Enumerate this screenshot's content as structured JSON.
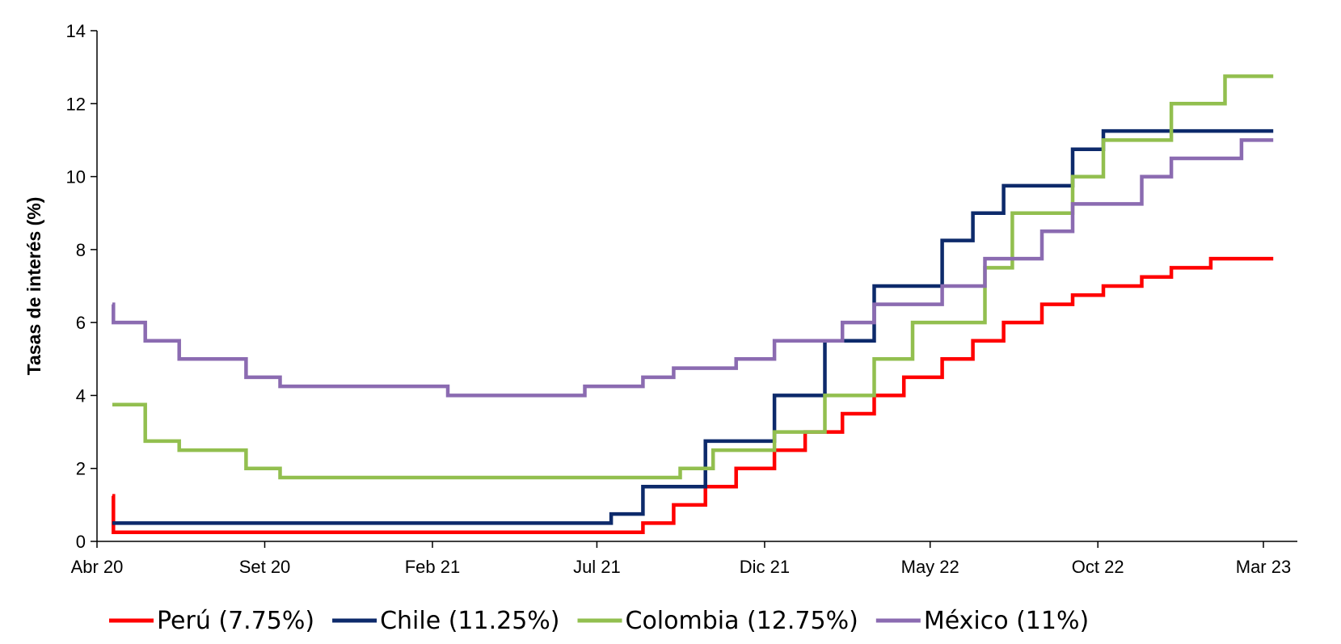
{
  "chart_data": {
    "type": "line",
    "step": true,
    "title": "",
    "xlabel": "",
    "ylabel": "Tasas de interés (%)",
    "ylim": [
      0,
      14
    ],
    "yticks": [
      0,
      2,
      4,
      6,
      8,
      10,
      12,
      14
    ],
    "xlim": [
      "2020-04-01",
      "2023-03-01"
    ],
    "xticks": [
      {
        "date": "2020-04-01",
        "label": "Abr 20"
      },
      {
        "date": "2020-09-01",
        "label": "Set 20"
      },
      {
        "date": "2021-02-01",
        "label": "Feb 21"
      },
      {
        "date": "2021-07-01",
        "label": "Jul 21"
      },
      {
        "date": "2021-12-01",
        "label": "Dic 21"
      },
      {
        "date": "2022-05-01",
        "label": "May 22"
      },
      {
        "date": "2022-10-01",
        "label": "Oct 22"
      },
      {
        "date": "2023-03-01",
        "label": "Mar 23"
      }
    ],
    "grid": false,
    "legend_position": "bottom",
    "series": [
      {
        "name": "Perú (7.75%)",
        "color": "#ff0000",
        "x": [
          "2020-04-15",
          "2020-04-16",
          "2021-08-12",
          "2021-09-09",
          "2021-10-08",
          "2021-11-05",
          "2021-12-10",
          "2022-01-07",
          "2022-02-10",
          "2022-03-11",
          "2022-04-07",
          "2022-05-12",
          "2022-06-09",
          "2022-07-07",
          "2022-08-11",
          "2022-09-08",
          "2022-10-06",
          "2022-11-10",
          "2022-12-07",
          "2023-01-12",
          "2023-02-09",
          "2023-03-10"
        ],
        "values": [
          1.25,
          0.25,
          0.5,
          1.0,
          1.5,
          2.0,
          2.5,
          3.0,
          3.5,
          4.0,
          4.5,
          5.0,
          5.5,
          6.0,
          6.5,
          6.75,
          7.0,
          7.25,
          7.5,
          7.75,
          7.75,
          7.75
        ]
      },
      {
        "name": "Chile (11.25%)",
        "color": "#0d2a6b",
        "x": [
          "2020-04-15",
          "2021-07-14",
          "2021-08-12",
          "2021-10-08",
          "2021-12-10",
          "2022-01-25",
          "2022-03-11",
          "2022-04-07",
          "2022-05-12",
          "2022-06-09",
          "2022-07-07",
          "2022-09-08",
          "2022-10-06",
          "2023-03-10"
        ],
        "values": [
          0.5,
          0.75,
          1.5,
          2.75,
          4.0,
          5.5,
          7.0,
          7.0,
          8.25,
          9.0,
          9.75,
          10.75,
          11.25,
          11.25
        ]
      },
      {
        "name": "Colombia (12.75%)",
        "color": "#92bf4f",
        "x": [
          "2020-04-15",
          "2020-05-15",
          "2020-06-15",
          "2020-08-15",
          "2020-09-15",
          "2021-09-15",
          "2021-10-15",
          "2021-12-10",
          "2022-01-25",
          "2022-03-11",
          "2022-04-15",
          "2022-05-28",
          "2022-06-20",
          "2022-07-15",
          "2022-09-08",
          "2022-10-06",
          "2022-12-07",
          "2023-01-25",
          "2023-03-10"
        ],
        "values": [
          3.75,
          2.75,
          2.5,
          2.0,
          1.75,
          2.0,
          2.5,
          3.0,
          4.0,
          5.0,
          6.0,
          6.0,
          7.5,
          9.0,
          10.0,
          11.0,
          12.0,
          12.75,
          12.75
        ]
      },
      {
        "name": "México (11%)",
        "color": "#8b6bb1",
        "x": [
          "2020-04-15",
          "2020-04-16",
          "2020-05-15",
          "2020-06-15",
          "2020-08-15",
          "2020-09-15",
          "2021-02-15",
          "2021-06-20",
          "2021-08-12",
          "2021-09-09",
          "2021-10-08",
          "2021-11-05",
          "2021-12-10",
          "2022-02-10",
          "2022-03-11",
          "2022-05-12",
          "2022-06-20",
          "2022-08-11",
          "2022-09-08",
          "2022-11-10",
          "2022-12-07",
          "2023-02-09",
          "2023-03-10"
        ],
        "values": [
          6.5,
          6.0,
          5.5,
          5.0,
          4.5,
          4.25,
          4.0,
          4.25,
          4.5,
          4.75,
          4.75,
          5.0,
          5.5,
          6.0,
          6.5,
          7.0,
          7.75,
          8.5,
          9.25,
          10.0,
          10.5,
          11.0,
          11.0
        ]
      }
    ]
  }
}
